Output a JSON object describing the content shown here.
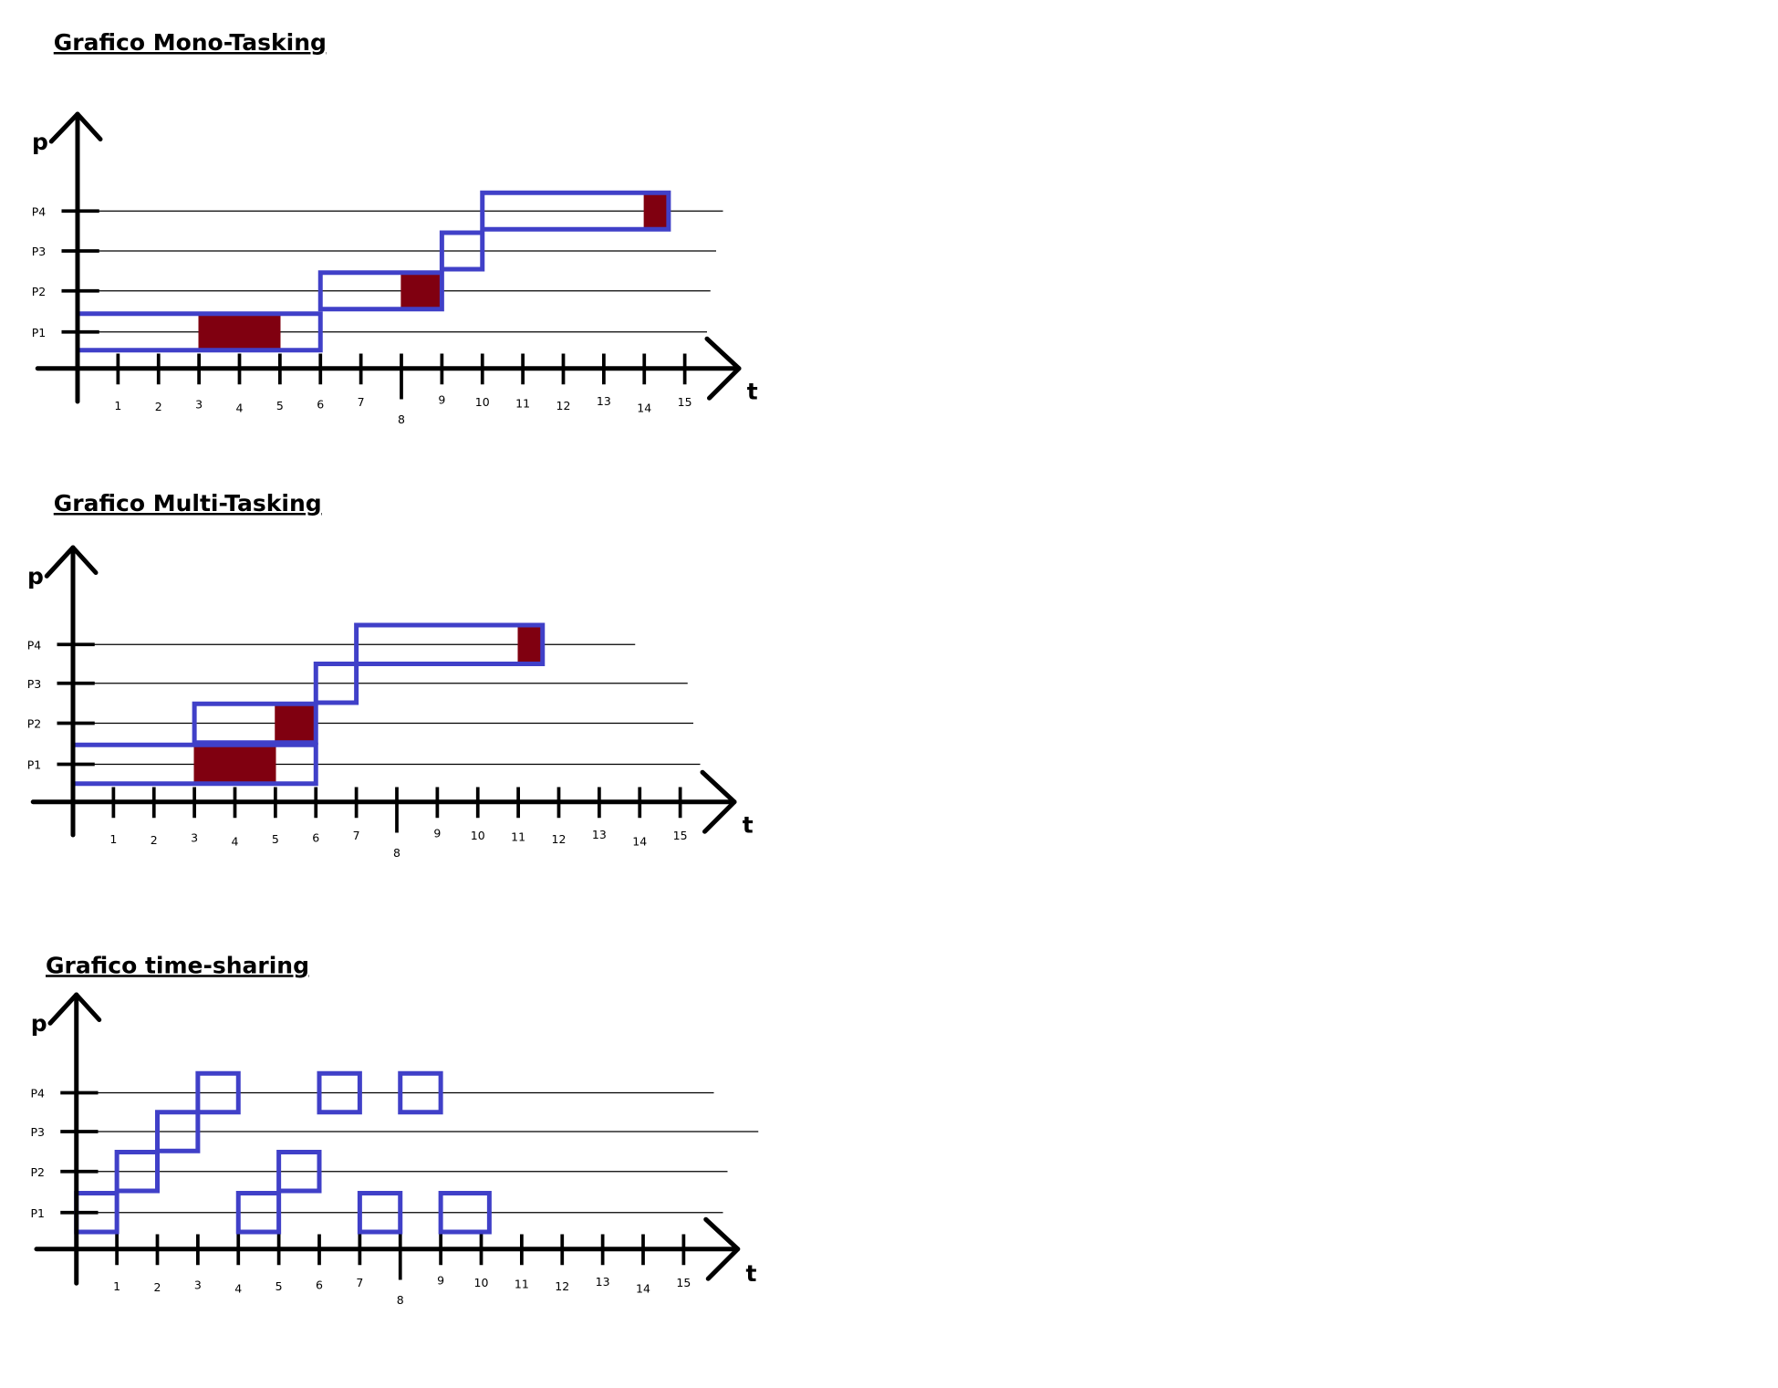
{
  "colors": {
    "process_box": "#4040c8",
    "blocked_box": "#800010",
    "axis": "#000000"
  },
  "charts": [
    {
      "title": "Grafico Mono-Tasking",
      "y_axis_label": "p",
      "x_axis_label": "t",
      "processes": [
        "P1",
        "P2",
        "P3",
        "P4"
      ],
      "time_ticks": [
        "1",
        "2",
        "3",
        "4",
        "5",
        "6",
        "7",
        "8",
        "9",
        "10",
        "11",
        "12",
        "13",
        "14",
        "15"
      ],
      "boxes": [
        {
          "process": "P1",
          "start": 0,
          "end": 6
        },
        {
          "process": "P2",
          "start": 6,
          "end": 9
        },
        {
          "process": "P3",
          "start": 9,
          "end": 10
        },
        {
          "process": "P4",
          "start": 10,
          "end": 14.6
        }
      ],
      "blocked": [
        {
          "process": "P1",
          "start": 3,
          "end": 5
        },
        {
          "process": "P2",
          "start": 8,
          "end": 9
        },
        {
          "process": "P4",
          "start": 14,
          "end": 14.6
        }
      ]
    },
    {
      "title": "Grafico Multi-Tasking",
      "y_axis_label": "p",
      "x_axis_label": "t",
      "processes": [
        "P1",
        "P2",
        "P3",
        "P4"
      ],
      "time_ticks": [
        "1",
        "2",
        "3",
        "4",
        "5",
        "6",
        "7",
        "8",
        "9",
        "10",
        "11",
        "12",
        "13",
        "14",
        "15"
      ],
      "boxes": [
        {
          "process": "P1",
          "start": 0,
          "end": 6
        },
        {
          "process": "P2",
          "start": 3,
          "end": 6
        },
        {
          "process": "P3",
          "start": 6,
          "end": 7
        },
        {
          "process": "P4",
          "start": 7,
          "end": 11.6
        }
      ],
      "blocked": [
        {
          "process": "P1",
          "start": 3,
          "end": 5
        },
        {
          "process": "P2",
          "start": 5,
          "end": 6
        },
        {
          "process": "P4",
          "start": 11,
          "end": 11.6
        }
      ]
    },
    {
      "title": "Grafico time-sharing",
      "y_axis_label": "p",
      "x_axis_label": "t",
      "processes": [
        "P1",
        "P2",
        "P3",
        "P4"
      ],
      "time_ticks": [
        "1",
        "2",
        "3",
        "4",
        "5",
        "6",
        "7",
        "8",
        "9",
        "10",
        "11",
        "12",
        "13",
        "14",
        "15"
      ],
      "boxes": [
        {
          "process": "P1",
          "start": 0,
          "end": 1
        },
        {
          "process": "P2",
          "start": 1,
          "end": 2
        },
        {
          "process": "P3",
          "start": 2,
          "end": 3
        },
        {
          "process": "P4",
          "start": 3,
          "end": 4
        },
        {
          "process": "P1",
          "start": 4,
          "end": 5
        },
        {
          "process": "P2",
          "start": 5,
          "end": 6
        },
        {
          "process": "P4",
          "start": 6,
          "end": 7
        },
        {
          "process": "P1",
          "start": 7,
          "end": 8
        },
        {
          "process": "P4",
          "start": 8,
          "end": 9
        },
        {
          "process": "P1",
          "start": 9,
          "end": 10.2
        }
      ],
      "blocked": []
    }
  ]
}
